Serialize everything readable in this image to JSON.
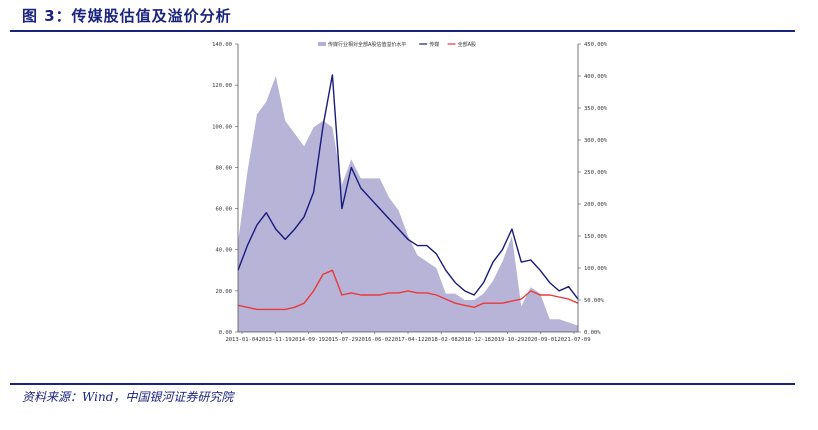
{
  "header": {
    "title": "图 3：传媒股估值及溢价分析"
  },
  "footer": {
    "source": "资料来源：Wind，中国银河证券研究院"
  },
  "chart_data": {
    "type": "line",
    "x_tick_labels": [
      "2013-01-04",
      "2013-11-19",
      "2014-09-19",
      "2015-07-29",
      "2016-06-02",
      "2017-04-12",
      "2018-02-08",
      "2018-12-18",
      "2019-10-29",
      "2020-09-01",
      "2021-07-09"
    ],
    "y_left": {
      "range": [
        0,
        140
      ],
      "ticks": [
        "0.00",
        "20.00",
        "40.00",
        "60.00",
        "80.00",
        "100.00",
        "120.00",
        "140.00"
      ]
    },
    "y_right": {
      "range": [
        0,
        450
      ],
      "ticks": [
        "0.00%",
        "50.00%",
        "100.00%",
        "150.00%",
        "200.00%",
        "250.00%",
        "300.00%",
        "350.00%",
        "400.00%",
        "450.00%"
      ]
    },
    "legend": {
      "position": "top",
      "entries": [
        "传媒行业相对全部A股估值溢价水平",
        "传媒",
        "全部A股"
      ]
    },
    "colors": {
      "premium": "#b3b0d6",
      "media": "#1a1a7a",
      "all_a": "#e83a3a"
    },
    "x": [
      "2013-01",
      "2013-04",
      "2013-07",
      "2013-10",
      "2014-01",
      "2014-04",
      "2014-07",
      "2014-10",
      "2015-01",
      "2015-04",
      "2015-06",
      "2015-07",
      "2015-10",
      "2016-01",
      "2016-04",
      "2016-07",
      "2016-10",
      "2017-01",
      "2017-04",
      "2017-07",
      "2017-10",
      "2018-01",
      "2018-04",
      "2018-07",
      "2018-10",
      "2019-01",
      "2019-04",
      "2019-07",
      "2019-10",
      "2020-01",
      "2020-04",
      "2020-07",
      "2020-10",
      "2021-01",
      "2021-04",
      "2021-07",
      "2021-10"
    ],
    "series": [
      {
        "name": "传媒行业相对全部A股估值溢价水平",
        "axis": "right",
        "values": [
          140,
          250,
          340,
          360,
          400,
          330,
          310,
          290,
          320,
          330,
          320,
          230,
          270,
          240,
          240,
          240,
          210,
          190,
          150,
          120,
          110,
          100,
          60,
          60,
          50,
          50,
          60,
          80,
          110,
          150,
          40,
          70,
          60,
          20,
          20,
          15,
          10
        ]
      },
      {
        "name": "传媒",
        "axis": "left",
        "values": [
          30,
          42,
          52,
          58,
          50,
          45,
          50,
          56,
          68,
          100,
          125,
          60,
          80,
          70,
          65,
          60,
          55,
          50,
          45,
          42,
          42,
          38,
          30,
          24,
          20,
          18,
          24,
          34,
          40,
          50,
          34,
          35,
          30,
          24,
          20,
          22,
          16
        ]
      },
      {
        "name": "全部A股",
        "axis": "left",
        "values": [
          13,
          12,
          11,
          11,
          11,
          11,
          12,
          14,
          20,
          28,
          30,
          18,
          19,
          18,
          18,
          18,
          19,
          19,
          20,
          19,
          19,
          18,
          16,
          14,
          13,
          12,
          14,
          14,
          14,
          15,
          16,
          20,
          18,
          18,
          17,
          16,
          14
        ]
      }
    ]
  }
}
